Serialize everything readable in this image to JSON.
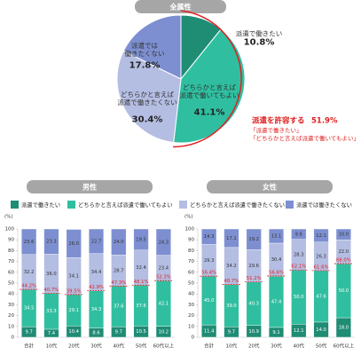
{
  "chart_data": [
    {
      "type": "pie",
      "title": "全属性",
      "categories": [
        "派遣で働きたい",
        "どちらかと言えば\n派遣で働いてもよい",
        "どちらかと言えば\n派遣で働きたくない",
        "派遣では\n働きたくない"
      ],
      "values": [
        10.8,
        41.1,
        30.4,
        17.8
      ],
      "value_labels": [
        "10.8%",
        "41.1%",
        "30.4%",
        "17.8%"
      ],
      "colors": [
        "#1f8c74",
        "#2fbfa0",
        "#b4bde2",
        "#7d8fd0"
      ],
      "annotation": {
        "title": "派遣を許容する",
        "value_label": "51.9%",
        "notes": [
          "「派遣で働きたい」",
          "「どちらかと言えば派遣で働いてもよい」"
        ]
      }
    },
    {
      "type": "bar",
      "stacked": true,
      "y_unit": "(%)",
      "ylim": [
        0,
        100
      ],
      "yticks": [
        0,
        10,
        20,
        30,
        40,
        50,
        60,
        70,
        80,
        90,
        100
      ],
      "categories": [
        "合計",
        "10代",
        "20代",
        "30代",
        "40代",
        "50代",
        "60代以上"
      ],
      "series": [
        {
          "name": "派遣で働きたい",
          "color": "#1f8c74"
        },
        {
          "name": "どちらかと言えば派遣で働いてもよい",
          "color": "#2fbfa0"
        },
        {
          "name": "どちらかと言えば派遣で働きたくない",
          "color": "#b4bde2"
        },
        {
          "name": "派遣では働きたくない",
          "color": "#7d8fd0"
        }
      ],
      "panels": [
        {
          "title": "男性",
          "values": [
            [
              9.7,
              7.4,
              10.4,
              8.6,
              9.7,
              10.5,
              10.2
            ],
            [
              34.5,
              33.3,
              29.1,
              34.3,
              37.6,
              37.6,
              42.1
            ],
            [
              32.2,
              36.0,
              34.1,
              34.4,
              28.7,
              32.4,
              23.4
            ],
            [
              23.6,
              23.3,
              26.0,
              22.7,
              24.0,
              19.5,
              24.3
            ]
          ],
          "value_labels": [
            [
              "9.7",
              "7.4",
              "10.4",
              "8.6",
              "9.7",
              "10.5",
              "10.2"
            ],
            [
              "34.5",
              "33.3",
              "29.1",
              "34.3",
              "37.6",
              "37.6",
              "42.1"
            ],
            [
              "32.2",
              "36.0",
              "34.1",
              "34.4",
              "28.7",
              "32.4",
              "23.4"
            ],
            [
              "23.6",
              "23.3",
              "26.0",
              "22.7",
              "24.0",
              "19.5",
              "24.3"
            ]
          ],
          "totals": [
            44.2,
            40.7,
            39.5,
            42.9,
            47.3,
            48.1,
            52.3
          ],
          "total_labels": [
            "44.2%",
            "40.7%",
            "39.5%",
            "42.9%",
            "47.3%",
            "48.1%",
            "52.3%"
          ]
        },
        {
          "title": "女性",
          "values": [
            [
              11.4,
              9.7,
              10.9,
              9.1,
              12.1,
              14.0,
              18.0
            ],
            [
              45.0,
              39.0,
              40.3,
              47.4,
              50.0,
              47.6,
              50.0
            ],
            [
              29.3,
              34.2,
              29.6,
              30.4,
              28.3,
              26.3,
              22.0
            ],
            [
              14.3,
              17.1,
              19.2,
              13.1,
              9.6,
              12.1,
              10.0
            ]
          ],
          "value_labels": [
            [
              "11.4",
              "9.7",
              "10.9",
              "9.1",
              "12.1",
              "14.0",
              "18.0"
            ],
            [
              "45.0",
              "39.0",
              "40.3",
              "47.4",
              "50.0",
              "47.6",
              "50.0"
            ],
            [
              "29.3",
              "34.2",
              "29.6",
              "30.4",
              "28.3",
              "26.3",
              "22.0"
            ],
            [
              "14.3",
              "17.1",
              "19.2",
              "13.1",
              "9.6",
              "12.1",
              "10.0"
            ]
          ],
          "totals": [
            56.4,
            48.7,
            51.2,
            56.6,
            62.1,
            61.6,
            68.0
          ],
          "total_labels": [
            "56.4%",
            "48.7%",
            "51.2%",
            "56.6%",
            "62.1%",
            "61.6%",
            "68.0%"
          ]
        }
      ]
    }
  ]
}
